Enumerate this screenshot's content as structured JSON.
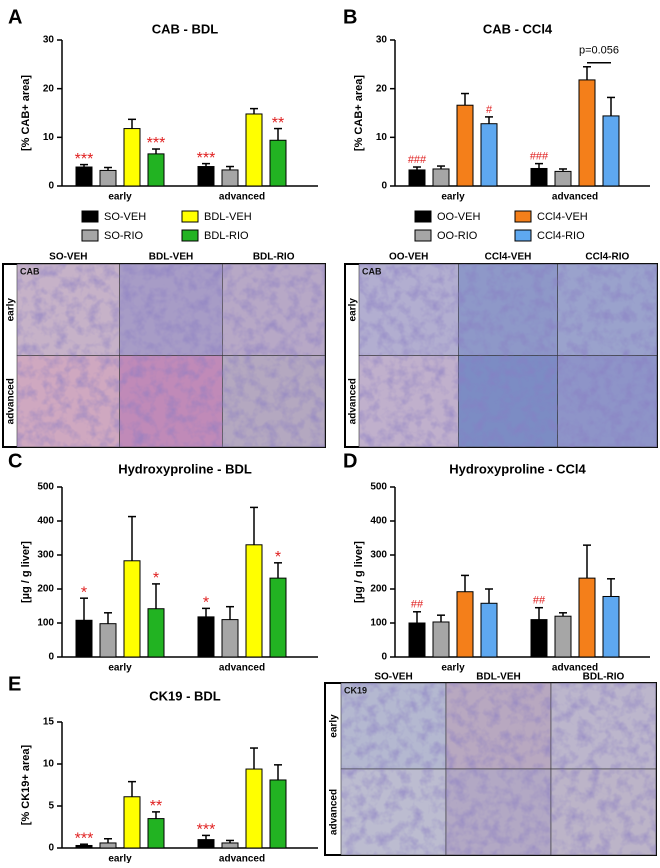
{
  "chart_data": [
    {
      "panel": "A",
      "type": "bar",
      "title": "CAB - BDL",
      "y_label": "[% CAB+ area]",
      "categories": [
        "early",
        "advanced"
      ],
      "ylim": [
        0,
        30
      ],
      "yticks": [
        0,
        10,
        20,
        30
      ],
      "legend": true,
      "series": [
        {
          "name": "SO-VEH",
          "color": "#000000",
          "values": [
            3.9,
            4.0
          ],
          "errors": [
            0.5,
            0.6
          ],
          "significance": [
            "***",
            "***"
          ]
        },
        {
          "name": "SO-RIO",
          "color": "#a6a6a6",
          "values": [
            3.2,
            3.3
          ],
          "errors": [
            0.6,
            0.7
          ],
          "significance": [
            null,
            null
          ]
        },
        {
          "name": "BDL-VEH",
          "color": "#ffff00",
          "values": [
            11.8,
            14.8
          ],
          "errors": [
            1.9,
            1.1
          ],
          "significance": [
            null,
            null
          ]
        },
        {
          "name": "BDL-RIO",
          "color": "#22b322",
          "values": [
            6.6,
            9.4
          ],
          "errors": [
            1.0,
            2.4
          ],
          "significance": [
            "***",
            "**"
          ]
        }
      ]
    },
    {
      "panel": "B",
      "type": "bar",
      "title": "CAB - CCl4",
      "y_label": "[% CAB+ area]",
      "categories": [
        "early",
        "advanced"
      ],
      "ylim": [
        0,
        30
      ],
      "yticks": [
        0,
        10,
        20,
        30
      ],
      "legend": true,
      "annotation": "p=0.056",
      "series": [
        {
          "name": "OO-VEH",
          "color": "#000000",
          "values": [
            3.3,
            3.6
          ],
          "errors": [
            0.6,
            1.0
          ],
          "significance": [
            "###",
            "###"
          ]
        },
        {
          "name": "OO-RIO",
          "color": "#a6a6a6",
          "values": [
            3.5,
            3.0
          ],
          "errors": [
            0.6,
            0.5
          ],
          "significance": [
            null,
            null
          ]
        },
        {
          "name": "CCl4-VEH",
          "color": "#f47f1a",
          "values": [
            16.6,
            21.8
          ],
          "errors": [
            2.4,
            2.7
          ],
          "significance": [
            null,
            null
          ]
        },
        {
          "name": "CCl4-RIO",
          "color": "#5ea8f0",
          "values": [
            12.8,
            14.4
          ],
          "errors": [
            1.4,
            3.8
          ],
          "significance": [
            "#",
            null
          ]
        }
      ]
    },
    {
      "panel": "C",
      "type": "bar",
      "title": "Hydroxyproline - BDL",
      "y_label": "[µg / g liver]",
      "categories": [
        "early",
        "advanced"
      ],
      "ylim": [
        0,
        500
      ],
      "yticks": [
        0,
        100,
        200,
        300,
        400,
        500
      ],
      "series": [
        {
          "name": "SO-VEH",
          "color": "#000000",
          "values": [
            108,
            118
          ],
          "errors": [
            65,
            25
          ],
          "significance": [
            "*",
            "*"
          ]
        },
        {
          "name": "SO-RIO",
          "color": "#a6a6a6",
          "values": [
            98,
            110
          ],
          "errors": [
            32,
            38
          ],
          "significance": [
            null,
            null
          ]
        },
        {
          "name": "BDL-VEH",
          "color": "#ffff00",
          "values": [
            283,
            330
          ],
          "errors": [
            130,
            110
          ],
          "significance": [
            null,
            null
          ]
        },
        {
          "name": "BDL-RIO",
          "color": "#22b322",
          "values": [
            142,
            232
          ],
          "errors": [
            73,
            45
          ],
          "significance": [
            "*",
            "*"
          ]
        }
      ]
    },
    {
      "panel": "D",
      "type": "bar",
      "title": "Hydroxyproline - CCl4",
      "y_label": "[µg / g liver]",
      "categories": [
        "early",
        "advanced"
      ],
      "ylim": [
        0,
        500
      ],
      "yticks": [
        0,
        100,
        200,
        300,
        400,
        500
      ],
      "series": [
        {
          "name": "OO-VEH",
          "color": "#000000",
          "values": [
            100,
            110
          ],
          "errors": [
            33,
            35
          ],
          "significance": [
            "##",
            "##"
          ]
        },
        {
          "name": "OO-RIO",
          "color": "#a6a6a6",
          "values": [
            103,
            120
          ],
          "errors": [
            20,
            10
          ],
          "significance": [
            null,
            null
          ]
        },
        {
          "name": "CCl4-VEH",
          "color": "#f47f1a",
          "values": [
            192,
            232
          ],
          "errors": [
            48,
            97
          ],
          "significance": [
            null,
            null
          ]
        },
        {
          "name": "CCl4-RIO",
          "color": "#5ea8f0",
          "values": [
            158,
            178
          ],
          "errors": [
            42,
            52
          ],
          "significance": [
            null,
            null
          ]
        }
      ]
    },
    {
      "panel": "E",
      "type": "bar",
      "title": "CK19 - BDL",
      "y_label": "[% CK19+ area]",
      "categories": [
        "early",
        "advanced"
      ],
      "ylim": [
        0,
        15
      ],
      "yticks": [
        0,
        5,
        10,
        15
      ],
      "series": [
        {
          "name": "SO-VEH",
          "color": "#000000",
          "values": [
            0.3,
            1.0
          ],
          "errors": [
            0.15,
            0.5
          ],
          "significance": [
            "***",
            "***"
          ]
        },
        {
          "name": "SO-RIO",
          "color": "#a6a6a6",
          "values": [
            0.6,
            0.6
          ],
          "errors": [
            0.5,
            0.3
          ],
          "significance": [
            null,
            null
          ]
        },
        {
          "name": "BDL-VEH",
          "color": "#ffff00",
          "values": [
            6.1,
            9.4
          ],
          "errors": [
            1.8,
            2.5
          ],
          "significance": [
            null,
            null
          ]
        },
        {
          "name": "BDL-RIO",
          "color": "#22b322",
          "values": [
            3.5,
            8.1
          ],
          "errors": [
            0.8,
            1.8
          ],
          "significance": [
            "**",
            null
          ]
        }
      ]
    }
  ],
  "micrographs": [
    {
      "stain": "CAB",
      "columns": [
        "SO-VEH",
        "BDL-VEH",
        "BDL-RIO"
      ],
      "rows": [
        "early",
        "advanced"
      ]
    },
    {
      "stain": "CAB",
      "columns": [
        "OO-VEH",
        "CCl4-VEH",
        "CCl4-RIO"
      ],
      "rows": [
        "early",
        "advanced"
      ]
    },
    {
      "stain": "CK19",
      "columns": [
        "SO-VEH",
        "BDL-VEH",
        "BDL-RIO"
      ],
      "rows": [
        "early",
        "advanced"
      ]
    }
  ]
}
